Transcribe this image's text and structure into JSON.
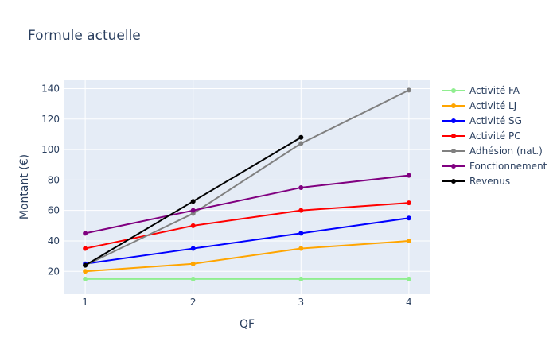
{
  "chart_data": {
    "type": "line",
    "title": "Formule actuelle",
    "xlabel": "QF",
    "ylabel": "Montant (€)",
    "x": [
      1,
      2,
      3,
      4
    ],
    "xlim": [
      0.8,
      4.2
    ],
    "ylim": [
      5,
      146
    ],
    "xticks": [
      1,
      2,
      3,
      4
    ],
    "yticks": [
      20,
      40,
      60,
      80,
      100,
      120,
      140
    ],
    "grid": true,
    "legend_position": "right",
    "plot_background": "#e5ecf6",
    "series": [
      {
        "name": "Activité FA",
        "color": "#90ee90",
        "x": [
          1,
          2,
          3,
          4
        ],
        "values": [
          15,
          15,
          15,
          15
        ]
      },
      {
        "name": "Activité LJ",
        "color": "#ffa500",
        "x": [
          1,
          2,
          3,
          4
        ],
        "values": [
          20,
          25,
          35,
          40
        ]
      },
      {
        "name": "Activité SG",
        "color": "#0000ff",
        "x": [
          1,
          2,
          3,
          4
        ],
        "values": [
          25,
          35,
          45,
          55
        ]
      },
      {
        "name": "Activité PC",
        "color": "#ff0000",
        "x": [
          1,
          2,
          3,
          4
        ],
        "values": [
          35,
          50,
          60,
          65
        ]
      },
      {
        "name": "Adhésion (nat.)",
        "color": "#808080",
        "x": [
          1,
          2,
          3,
          4
        ],
        "values": [
          24,
          58,
          104,
          139
        ]
      },
      {
        "name": "Fonctionnement",
        "color": "#800080",
        "x": [
          1,
          2,
          3,
          4
        ],
        "values": [
          45,
          60,
          75,
          83
        ]
      },
      {
        "name": "Revenus",
        "color": "#000000",
        "x": [
          1,
          2,
          3
        ],
        "values": [
          24,
          66,
          108
        ]
      }
    ]
  }
}
